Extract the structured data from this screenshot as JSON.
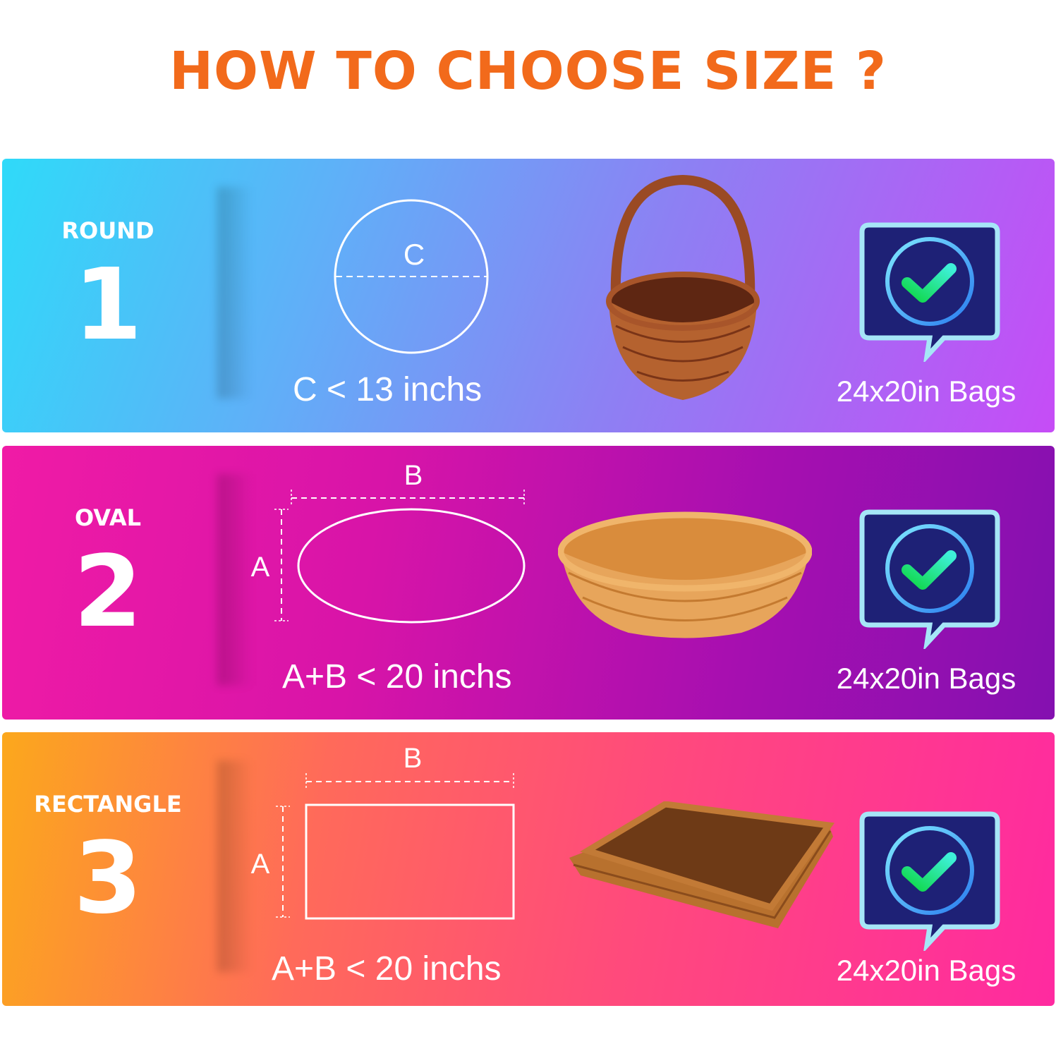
{
  "title": "HOW TO CHOOSE SIZE ?",
  "panels": [
    {
      "kind": "ROUND",
      "number": "1",
      "dim_label_c": "C",
      "formula": "C < 13 inchs",
      "bags": "24x20in Bags",
      "icon": "check-speech-bubble-icon"
    },
    {
      "kind": "OVAL",
      "number": "2",
      "dim_label_a": "A",
      "dim_label_b": "B",
      "formula": "A+B < 20 inchs",
      "bags": "24x20in Bags",
      "icon": "check-speech-bubble-icon"
    },
    {
      "kind": "RECTANGLE",
      "number": "3",
      "dim_label_a": "A",
      "dim_label_b": "B",
      "formula": "A+B < 20 inchs",
      "bags": "24x20in Bags",
      "icon": "check-speech-bubble-icon"
    }
  ],
  "colors": {
    "title": "#f26a1b",
    "badge_bg": "#1e2176",
    "check": "#22e07a"
  }
}
